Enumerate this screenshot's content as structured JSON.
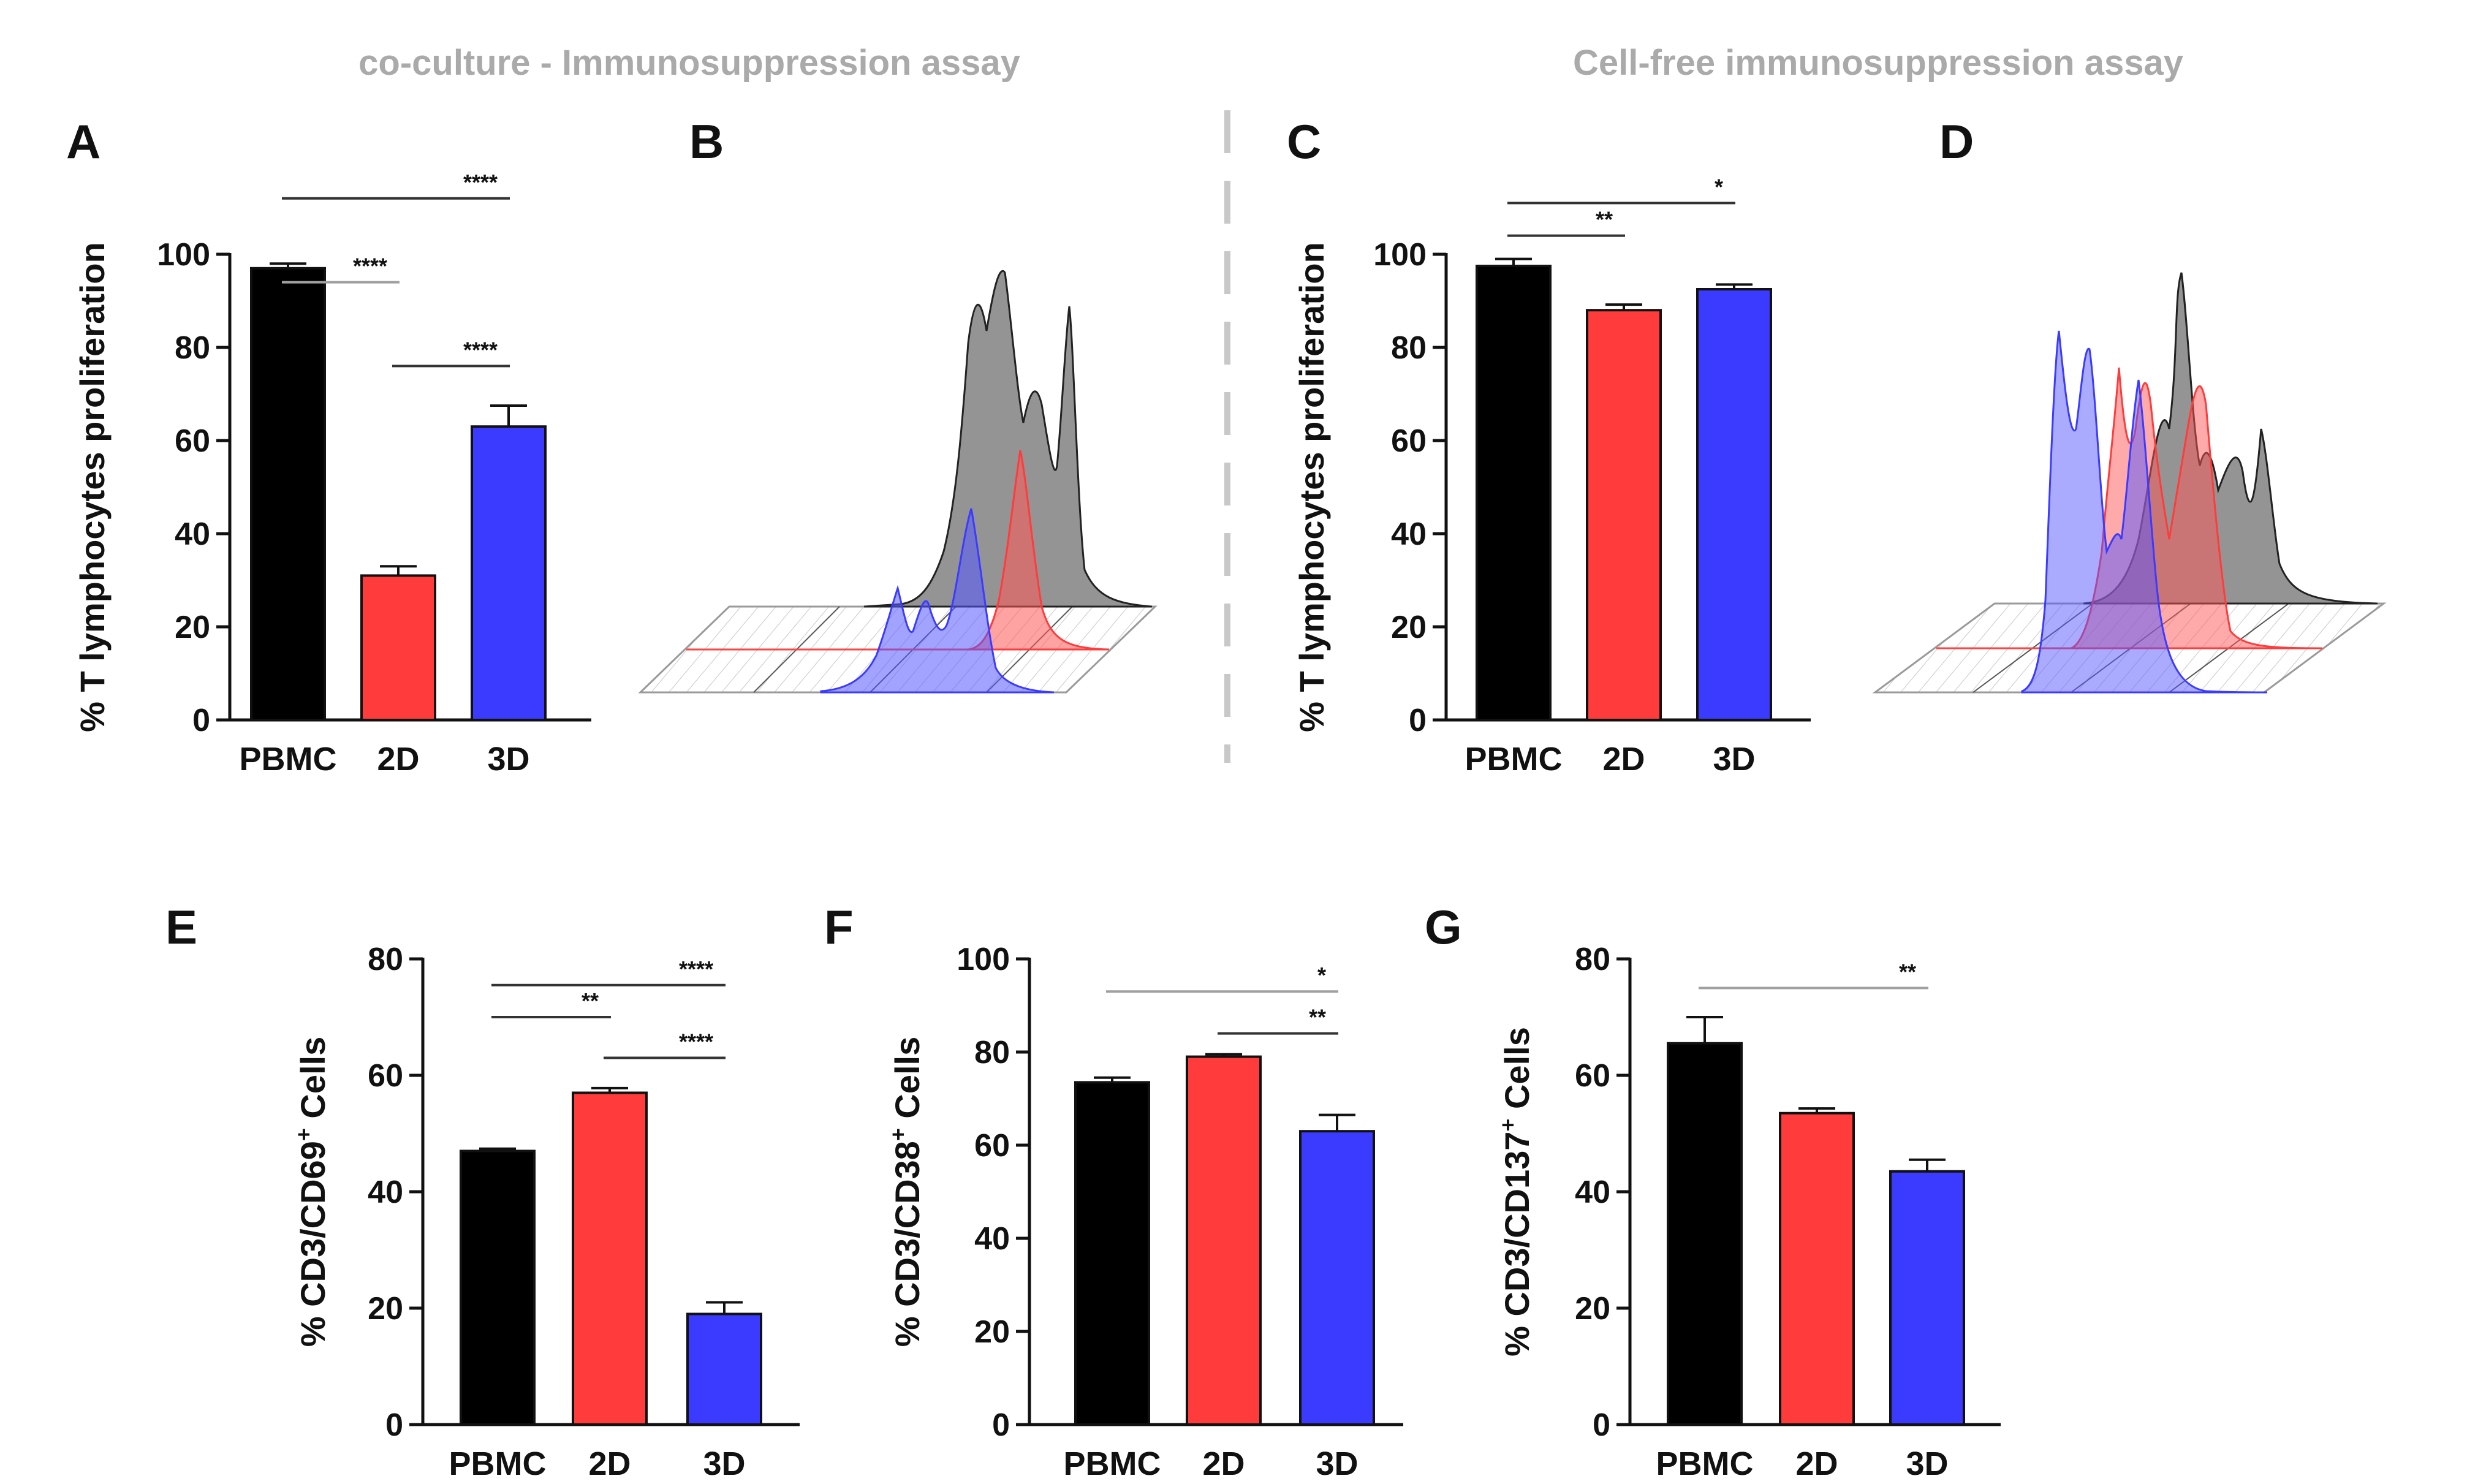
{
  "figure": {
    "section_left_title": "co-culture - Immunosuppression assay",
    "section_right_title": "Cell-free immunosuppression assay"
  },
  "colors": {
    "PBMC": "#000000",
    "2D": "#ff3b3b",
    "3D": "#3b3bff",
    "sig_line_light": "#a0a0a0",
    "sig_line_dark": "#333333",
    "histogram_gray": "#888888"
  },
  "chart_data": [
    {
      "panel": "A",
      "type": "bar",
      "categories": [
        "PBMC",
        "2D",
        "3D"
      ],
      "values": [
        97,
        31,
        63
      ],
      "errors": [
        1,
        2,
        4.5
      ],
      "ylabel": "% T lymphocytes proliferation",
      "ylim": [
        0,
        100
      ],
      "yticks": [
        "0",
        "20",
        "40",
        "60",
        "80",
        "100"
      ],
      "significance": [
        {
          "from": 0,
          "to": 1,
          "label": "****",
          "level": 0.94,
          "shade": "light"
        },
        {
          "from": 0,
          "to": 2,
          "label": "****",
          "level": 1.12,
          "shade": "dark"
        },
        {
          "from": 1,
          "to": 2,
          "label": "****",
          "level": 0.76,
          "shade": "dark"
        }
      ]
    },
    {
      "panel": "B",
      "type": "histogram",
      "description_series": [
        "PBMC",
        "2D",
        "3D"
      ]
    },
    {
      "panel": "C",
      "type": "bar",
      "categories": [
        "PBMC",
        "2D",
        "3D"
      ],
      "values": [
        97.5,
        88,
        92.5
      ],
      "errors": [
        1.5,
        1.2,
        1
      ],
      "ylabel": "% T lymphocytes proliferation",
      "ylim": [
        0,
        100
      ],
      "yticks": [
        "0",
        "20",
        "40",
        "60",
        "80",
        "100"
      ],
      "significance": [
        {
          "from": 0,
          "to": 1,
          "label": "**",
          "level": 1.04,
          "shade": "dark"
        },
        {
          "from": 0,
          "to": 2,
          "label": "*",
          "level": 1.11,
          "shade": "dark"
        }
      ]
    },
    {
      "panel": "D",
      "type": "histogram",
      "description_series": [
        "PBMC",
        "2D",
        "3D"
      ]
    },
    {
      "panel": "E",
      "type": "bar",
      "categories": [
        "PBMC",
        "2D",
        "3D"
      ],
      "values": [
        47,
        57,
        19
      ],
      "errors": [
        0.4,
        0.8,
        2
      ],
      "ylabel": "% CD3/CD69",
      "ylabel_sup": "+",
      "ylabel_tail": " Cells",
      "ylim": [
        0,
        80
      ],
      "yticks": [
        "0",
        "20",
        "40",
        "60",
        "80"
      ],
      "significance": [
        {
          "from": 0,
          "to": 1,
          "label": "**",
          "level": 70,
          "shade": "dark"
        },
        {
          "from": 0,
          "to": 2,
          "label": "****",
          "level": 75.5,
          "shade": "dark"
        },
        {
          "from": 1,
          "to": 2,
          "label": "****",
          "level": 63,
          "shade": "dark"
        }
      ]
    },
    {
      "panel": "F",
      "type": "bar",
      "categories": [
        "PBMC",
        "2D",
        "3D"
      ],
      "values": [
        73.5,
        79,
        63
      ],
      "errors": [
        1,
        0.5,
        3.5
      ],
      "ylabel": "% CD3/CD38",
      "ylabel_sup": "+",
      "ylabel_tail": " Cells",
      "ylim": [
        0,
        100
      ],
      "yticks": [
        "0",
        "20",
        "40",
        "60",
        "80",
        "100"
      ],
      "significance": [
        {
          "from": 0,
          "to": 2,
          "label": "*",
          "level": 93,
          "shade": "light"
        },
        {
          "from": 1,
          "to": 2,
          "label": "**",
          "level": 84,
          "shade": "dark"
        }
      ]
    },
    {
      "panel": "G",
      "type": "bar",
      "categories": [
        "PBMC",
        "2D",
        "3D"
      ],
      "values": [
        65.5,
        53.5,
        43.5
      ],
      "errors": [
        4.5,
        0.8,
        2
      ],
      "ylabel": "% CD3/CD137",
      "ylabel_sup": "+",
      "ylabel_tail": " Cells",
      "ylim": [
        0,
        80
      ],
      "yticks": [
        "0",
        "20",
        "40",
        "60",
        "80"
      ],
      "significance": [
        {
          "from": 0,
          "to": 2,
          "label": "**",
          "level": 75,
          "shade": "light"
        }
      ]
    }
  ]
}
